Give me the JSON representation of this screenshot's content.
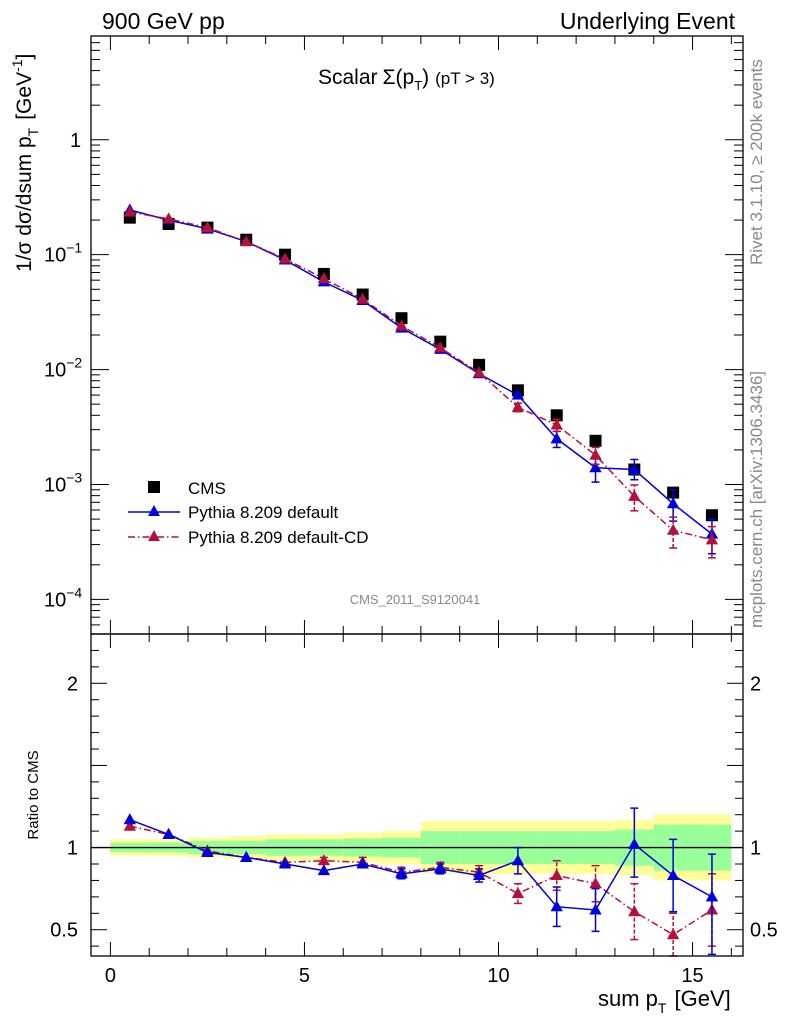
{
  "header": {
    "left": "900 GeV pp",
    "right": "Underlying Event"
  },
  "side_labels": {
    "rivet": "Rivet 3.1.10, ≥ 200k events",
    "mcplots": "mcplots.cern.ch [arXiv:1306.3436]"
  },
  "analysis_id": "CMS_2011_S9120041",
  "colors": {
    "cms": "#000000",
    "pythia_default": "#0000dd",
    "pythia_cd": "#b3103a",
    "band_inner": "#99ff99",
    "band_outer": "#ffff99"
  },
  "chart_data": [
    {
      "type": "scatter",
      "panel": "main",
      "title": "Scalar Σ(p_T) (pT > 3)",
      "title_parts": {
        "scalar": "Scalar",
        "sigma": "Σ(p",
        "sub": "T",
        "close": ")",
        "cut": "(pT >  3)"
      },
      "ylabel": "1/σ dσ/dsum p_T [GeV^-1]",
      "ylabel_parts": {
        "main": "1/σ dσ/dsum p",
        "sub": "T",
        "unit": "[GeV",
        "exp": "-1",
        "close": "]"
      },
      "yscale": "log",
      "xlim": [
        -0.5,
        16.3
      ],
      "ylim": [
        5e-05,
        8
      ],
      "y_ticks": [
        {
          "value": 0.0001,
          "base": "10",
          "exp": "−4"
        },
        {
          "value": 0.001,
          "base": "10",
          "exp": "−3"
        },
        {
          "value": 0.01,
          "base": "10",
          "exp": "−2"
        },
        {
          "value": 0.1,
          "base": "10",
          "exp": "−1"
        },
        {
          "value": 1,
          "base": "1",
          "exp": ""
        }
      ],
      "legend_position": "lower-left",
      "x": [
        0.5,
        1.5,
        2.5,
        3.5,
        4.5,
        5.5,
        6.5,
        7.5,
        8.5,
        9.5,
        10.5,
        11.5,
        12.5,
        13.5,
        14.5,
        15.5
      ],
      "series": [
        {
          "name": "CMS",
          "marker": "square",
          "values": [
            0.21,
            0.185,
            0.172,
            0.135,
            0.1,
            0.068,
            0.045,
            0.028,
            0.0175,
            0.011,
            0.0066,
            0.004,
            0.0024,
            0.00135,
            0.00085,
            0.00054
          ]
        },
        {
          "name": "Pythia 8.209 default",
          "marker": "triangle",
          "line": "solid",
          "values": [
            0.245,
            0.2,
            0.168,
            0.13,
            0.09,
            0.058,
            0.04,
            0.023,
            0.015,
            0.0092,
            0.006,
            0.0025,
            0.0014,
            0.00135,
            0.00068,
            0.00037
          ],
          "err_low": [
            0,
            0,
            0,
            0,
            0,
            0,
            0,
            0,
            0,
            0,
            0,
            0.0004,
            0.00035,
            0.00025,
            0.0002,
            0.00012
          ],
          "err_high": [
            0,
            0,
            0,
            0,
            0,
            0,
            0,
            0,
            0,
            0,
            0,
            0.0004,
            0.00035,
            0.0003,
            0.00022,
            0.00013
          ]
        },
        {
          "name": "Pythia 8.209 default-CD",
          "marker": "triangle",
          "line": "dashdot",
          "values": [
            0.235,
            0.205,
            0.172,
            0.13,
            0.092,
            0.062,
            0.041,
            0.024,
            0.0155,
            0.0094,
            0.0047,
            0.0033,
            0.0018,
            0.00079,
            0.0004,
            0.00033
          ],
          "err_low": [
            0,
            0,
            0,
            0,
            0,
            0,
            0,
            0,
            0,
            0,
            0.0004,
            0.0004,
            0.0003,
            0.0002,
            0.00012,
            0.0001
          ],
          "err_high": [
            0,
            0,
            0,
            0,
            0,
            0,
            0,
            0,
            0,
            0,
            0.0004,
            0.0004,
            0.0003,
            0.0002,
            0.00012,
            0.0001
          ]
        }
      ]
    },
    {
      "type": "scatter",
      "panel": "ratio",
      "xlabel": "sum p_T [GeV]",
      "xlabel_parts": {
        "main": "sum p",
        "sub": "T",
        "unit": "[GeV]"
      },
      "ylabel": "Ratio to CMS",
      "xlim": [
        -0.5,
        16.3
      ],
      "ylim": [
        0.34,
        2.3
      ],
      "x_ticks": [
        0,
        5,
        10,
        15
      ],
      "y_ticks": [
        0.5,
        1,
        2
      ],
      "reference_line": 1,
      "bins": [
        [
          -0.0,
          1.0
        ],
        [
          1.0,
          2.0
        ],
        [
          2.0,
          3.0
        ],
        [
          3.0,
          4.0
        ],
        [
          4.0,
          5.0
        ],
        [
          5.0,
          6.0
        ],
        [
          6.0,
          7.0
        ],
        [
          7.0,
          8.0
        ],
        [
          8.0,
          9.0
        ],
        [
          9.0,
          10.0
        ],
        [
          10.0,
          11.0
        ],
        [
          11.0,
          12.0
        ],
        [
          12.0,
          13.0
        ],
        [
          13.0,
          14.0
        ],
        [
          14.0,
          15.0
        ],
        [
          15.0,
          16.0
        ]
      ],
      "band_inner": [
        0.03,
        0.03,
        0.04,
        0.04,
        0.05,
        0.05,
        0.055,
        0.06,
        0.1,
        0.1,
        0.1,
        0.1,
        0.1,
        0.11,
        0.14,
        0.14
      ],
      "band_outer": [
        0.05,
        0.05,
        0.06,
        0.07,
        0.08,
        0.08,
        0.09,
        0.1,
        0.16,
        0.16,
        0.16,
        0.16,
        0.16,
        0.17,
        0.2,
        0.2
      ],
      "x": [
        0.5,
        1.5,
        2.5,
        3.5,
        4.5,
        5.5,
        6.5,
        7.5,
        8.5,
        9.5,
        10.5,
        11.5,
        12.5,
        13.5,
        14.5,
        15.5
      ],
      "series": [
        {
          "name": "Pythia 8.209 default",
          "values": [
            1.17,
            1.08,
            0.97,
            0.94,
            0.9,
            0.86,
            0.9,
            0.84,
            0.87,
            0.83,
            0.92,
            0.64,
            0.62,
            1.02,
            0.83,
            0.7
          ],
          "err_low": [
            0,
            0,
            0,
            0,
            0,
            0,
            0,
            0.03,
            0.03,
            0.04,
            0.08,
            0.12,
            0.13,
            0.2,
            0.22,
            0.35
          ],
          "err_high": [
            0,
            0,
            0,
            0,
            0,
            0,
            0,
            0.03,
            0.03,
            0.04,
            0.08,
            0.12,
            0.13,
            0.22,
            0.22,
            0.26
          ]
        },
        {
          "name": "Pythia 8.209 default-CD",
          "values": [
            1.13,
            1.08,
            0.98,
            0.94,
            0.91,
            0.92,
            0.91,
            0.85,
            0.88,
            0.85,
            0.72,
            0.83,
            0.78,
            0.61,
            0.47,
            0.62
          ],
          "err_low": [
            0,
            0,
            0,
            0,
            0,
            0.02,
            0.03,
            0.03,
            0.03,
            0.04,
            0.06,
            0.09,
            0.11,
            0.17,
            0.13,
            0.22
          ],
          "err_high": [
            0,
            0,
            0,
            0,
            0,
            0.02,
            0.03,
            0.03,
            0.03,
            0.04,
            0.06,
            0.09,
            0.11,
            0.17,
            0.13,
            0.22
          ]
        }
      ]
    }
  ]
}
